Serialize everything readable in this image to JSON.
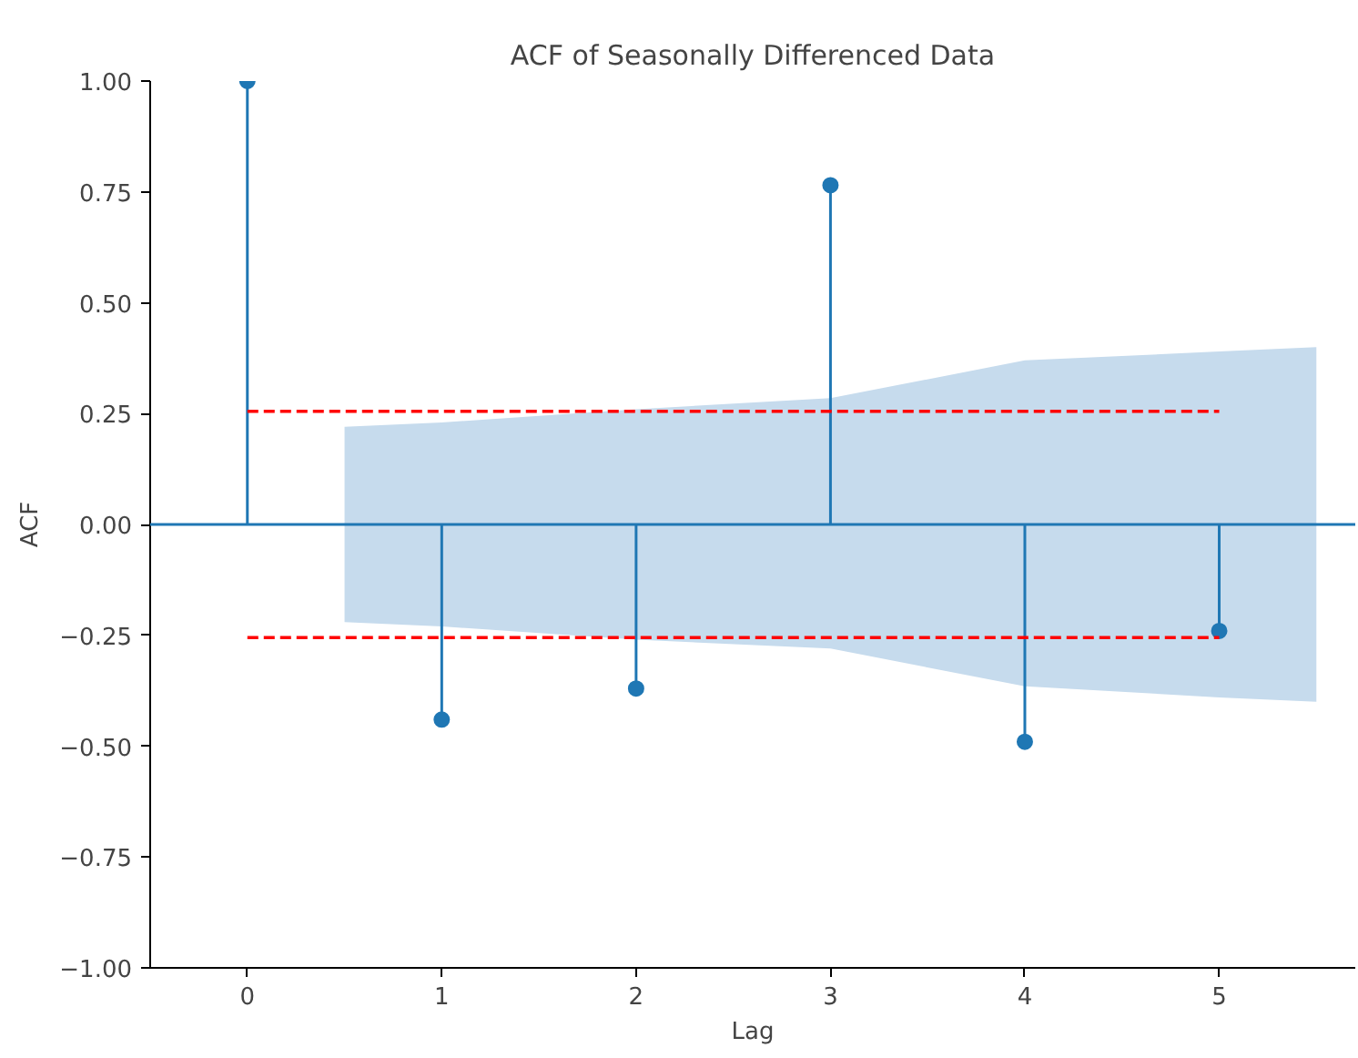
{
  "chart_data": {
    "type": "lollipop",
    "title": "ACF of Seasonally Differenced Data",
    "xlabel": "Lag",
    "ylabel": "ACF",
    "xlim": [
      -0.5,
      5.7
    ],
    "xticks": [
      0,
      1,
      2,
      3,
      4,
      5
    ],
    "ylim": [
      -1,
      1
    ],
    "yticks": [
      {
        "value": -1,
        "label": "−1.00"
      },
      {
        "value": -0.75,
        "label": "−0.75"
      },
      {
        "value": -0.5,
        "label": "−0.50"
      },
      {
        "value": -0.25,
        "label": "−0.25"
      },
      {
        "value": 0,
        "label": "0.00"
      },
      {
        "value": 0.25,
        "label": "0.25"
      },
      {
        "value": 0.5,
        "label": "0.50"
      },
      {
        "value": 0.75,
        "label": "0.75"
      },
      {
        "value": 1,
        "label": "1.00"
      }
    ],
    "grid": false,
    "ref_lines": [
      {
        "axis": "y",
        "value": 0,
        "color": "#1f77b4",
        "line_style": "solid"
      }
    ],
    "series": [
      {
        "type": "area",
        "color": "#c6dbed",
        "x": [
          0.5,
          1,
          2,
          3,
          4,
          5,
          5.5
        ],
        "values": [
          0.22,
          0.23,
          0.26,
          0.285,
          0.37,
          0.39,
          0.4
        ]
      },
      {
        "type": "area",
        "color": "#c6dbed",
        "x": [
          0.5,
          1,
          2,
          3,
          4,
          5,
          5.5
        ],
        "values": [
          -0.22,
          -0.23,
          -0.26,
          -0.28,
          -0.365,
          -0.39,
          -0.4
        ]
      },
      {
        "color": "#1f77b4",
        "marker": "circle",
        "x": [
          0,
          1,
          2,
          3,
          4,
          5
        ],
        "values": [
          1.0,
          -0.44,
          -0.37,
          0.765,
          -0.49,
          -0.24
        ]
      },
      {
        "type": "line",
        "color": "#ff0000",
        "line_style": "dashed",
        "x": [
          0,
          5
        ],
        "values": [
          0.255,
          0.255
        ]
      },
      {
        "type": "line",
        "color": "#ff0000",
        "line_style": "dashed",
        "x": [
          0,
          5
        ],
        "values": [
          -0.255,
          -0.255
        ]
      }
    ]
  }
}
